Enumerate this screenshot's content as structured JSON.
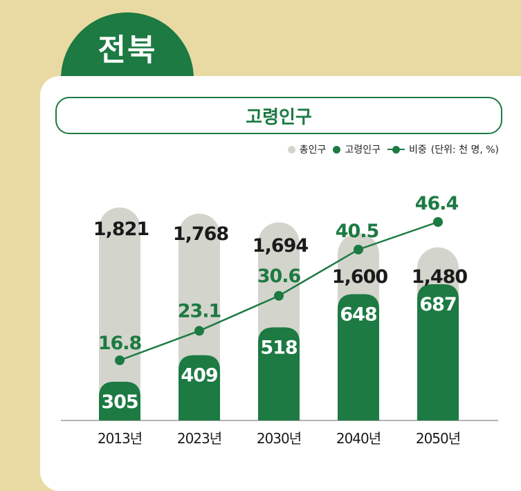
{
  "region": "전북",
  "chart_data": {
    "type": "bar",
    "title": "고령인구",
    "unit_note": "(단위: 천 명, %)",
    "categories": [
      "2013년",
      "2023년",
      "2030년",
      "2040년",
      "2050년"
    ],
    "series": [
      {
        "name": "총인구",
        "kind": "bar",
        "color": "#d3d4cc",
        "values": [
          1821,
          1768,
          1694,
          1600,
          1480
        ],
        "labels": [
          "1,821",
          "1,768",
          "1,694",
          "1,600",
          "1,480"
        ]
      },
      {
        "name": "고령인구",
        "kind": "bar",
        "color": "#1c7a42",
        "values": [
          305,
          409,
          518,
          648,
          687
        ],
        "labels": [
          "305",
          "409",
          "518",
          "648",
          "687"
        ]
      },
      {
        "name": "비중",
        "kind": "line",
        "color": "#1c7a42",
        "values": [
          16.8,
          23.1,
          30.6,
          40.5,
          46.4
        ],
        "labels": [
          "16.8",
          "23.1",
          "30.6",
          "40.5",
          "46.4"
        ]
      }
    ]
  },
  "colors": {
    "accent": "#1c7a42",
    "background": "#e9d9a2",
    "total_bar": "#d3d4cc"
  }
}
